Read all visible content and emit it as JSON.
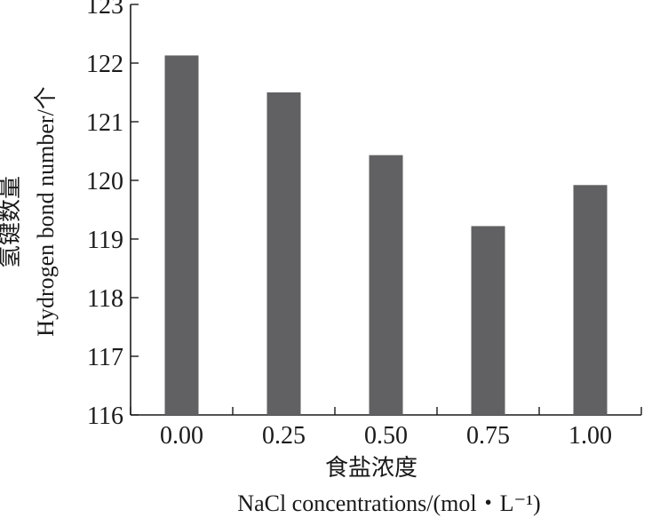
{
  "chart_data": {
    "type": "bar",
    "categories": [
      "0.00",
      "0.25",
      "0.50",
      "0.75",
      "1.00"
    ],
    "values": [
      122.13,
      121.5,
      120.43,
      119.22,
      119.92
    ],
    "ylim": [
      116,
      123
    ],
    "yticks": [
      "116",
      "117",
      "118",
      "119",
      "120",
      "121",
      "122",
      "123"
    ],
    "xlabel_cn": "食盐浓度",
    "xlabel_en": "NaCl concentrations/(mol・L⁻¹)",
    "ylabel_cn": "氢键数量",
    "ylabel_en": "Hydrogen bond number/个",
    "bar_color": "#616163",
    "grid": false,
    "legend": "none"
  }
}
